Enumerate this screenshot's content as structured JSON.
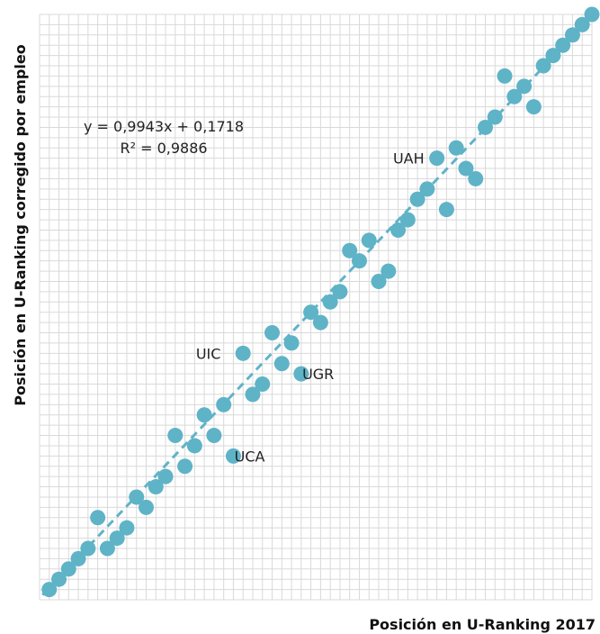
{
  "chart_data": {
    "type": "scatter",
    "title": "",
    "xlabel": "Posición en U-Ranking 2017",
    "ylabel": "Posición en U-Ranking corregido por empleo",
    "xlim": [
      0,
      57
    ],
    "ylim": [
      0,
      57
    ],
    "grid": true,
    "colors": {
      "points": "#5fb3c7",
      "trendline": "#5fb3c7",
      "grid": "#d9d9d9"
    },
    "points": [
      {
        "x": 1,
        "y": 1
      },
      {
        "x": 2,
        "y": 2
      },
      {
        "x": 3,
        "y": 3
      },
      {
        "x": 4,
        "y": 4
      },
      {
        "x": 5,
        "y": 5
      },
      {
        "x": 6,
        "y": 8
      },
      {
        "x": 7,
        "y": 5
      },
      {
        "x": 8,
        "y": 6
      },
      {
        "x": 9,
        "y": 7
      },
      {
        "x": 10,
        "y": 10
      },
      {
        "x": 11,
        "y": 9
      },
      {
        "x": 12,
        "y": 11
      },
      {
        "x": 13,
        "y": 12
      },
      {
        "x": 14,
        "y": 16
      },
      {
        "x": 15,
        "y": 13
      },
      {
        "x": 16,
        "y": 15
      },
      {
        "x": 17,
        "y": 18
      },
      {
        "x": 18,
        "y": 16
      },
      {
        "x": 19,
        "y": 19
      },
      {
        "x": 20,
        "y": 14
      },
      {
        "x": 21,
        "y": 24
      },
      {
        "x": 22,
        "y": 20
      },
      {
        "x": 23,
        "y": 21
      },
      {
        "x": 24,
        "y": 26
      },
      {
        "x": 25,
        "y": 23
      },
      {
        "x": 26,
        "y": 25
      },
      {
        "x": 27,
        "y": 22
      },
      {
        "x": 28,
        "y": 28
      },
      {
        "x": 29,
        "y": 27
      },
      {
        "x": 30,
        "y": 29
      },
      {
        "x": 31,
        "y": 30
      },
      {
        "x": 32,
        "y": 34
      },
      {
        "x": 33,
        "y": 33
      },
      {
        "x": 34,
        "y": 35
      },
      {
        "x": 35,
        "y": 31
      },
      {
        "x": 36,
        "y": 32
      },
      {
        "x": 37,
        "y": 36
      },
      {
        "x": 38,
        "y": 37
      },
      {
        "x": 39,
        "y": 39
      },
      {
        "x": 40,
        "y": 40
      },
      {
        "x": 41,
        "y": 43
      },
      {
        "x": 42,
        "y": 38
      },
      {
        "x": 43,
        "y": 44
      },
      {
        "x": 44,
        "y": 42
      },
      {
        "x": 45,
        "y": 41
      },
      {
        "x": 46,
        "y": 46
      },
      {
        "x": 47,
        "y": 47
      },
      {
        "x": 48,
        "y": 51
      },
      {
        "x": 49,
        "y": 49
      },
      {
        "x": 50,
        "y": 50
      },
      {
        "x": 51,
        "y": 48
      },
      {
        "x": 52,
        "y": 52
      },
      {
        "x": 53,
        "y": 53
      },
      {
        "x": 54,
        "y": 54
      },
      {
        "x": 55,
        "y": 55
      },
      {
        "x": 56,
        "y": 56
      },
      {
        "x": 57,
        "y": 57
      }
    ],
    "trendline": {
      "equation": "y = 0,9943x + 0,1718",
      "r2": "R² = 0,9886",
      "slope": 0.9943,
      "intercept": 0.1718
    },
    "annotations": [
      {
        "text": "UAH",
        "x": 41,
        "y": 43
      },
      {
        "text": "UIC",
        "x": 20,
        "y": 24
      },
      {
        "text": "UGR",
        "x": 26,
        "y": 22
      },
      {
        "text": "UCA",
        "x": 19,
        "y": 14
      }
    ]
  }
}
